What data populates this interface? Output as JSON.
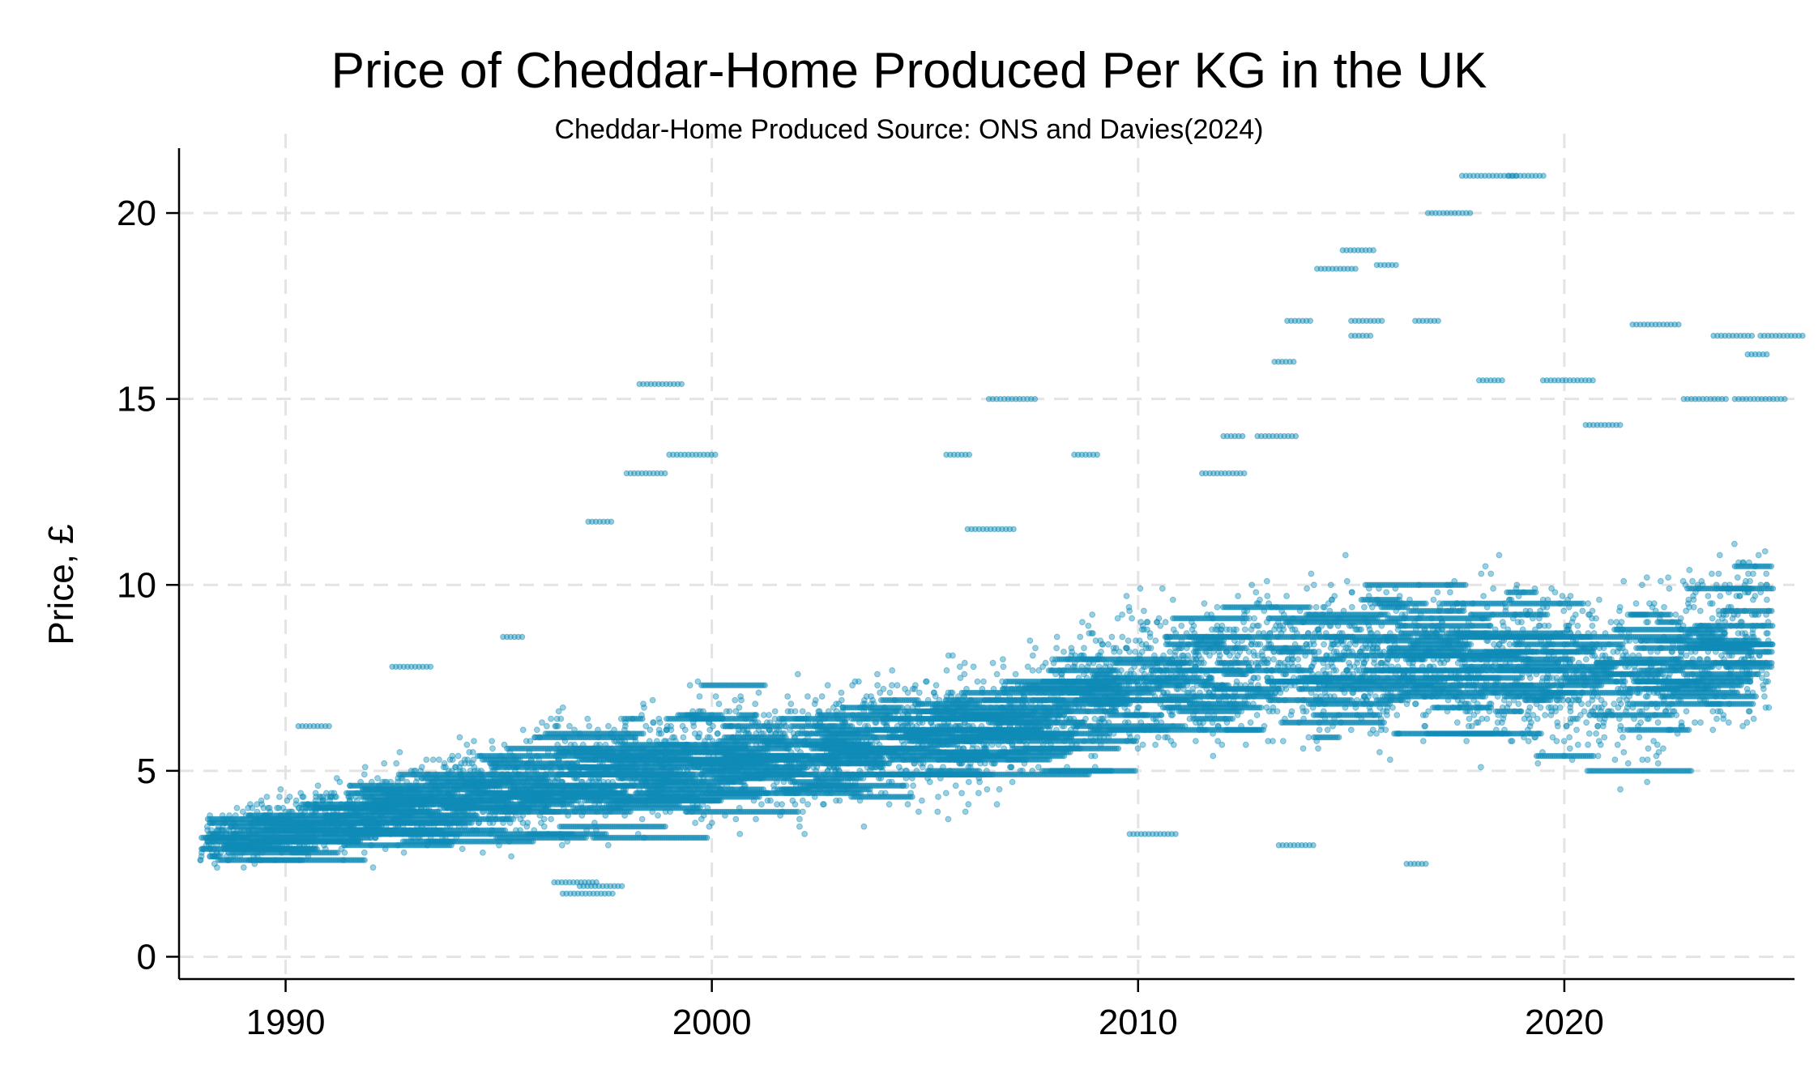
{
  "chart_data": {
    "type": "scatter",
    "title": "Price of Cheddar-Home Produced Per KG in the UK",
    "subtitle": "Cheddar-Home Produced Source: ONS and Davies(2024)",
    "xlabel": "",
    "ylabel": "Price, £",
    "xlim": [
      1987.5,
      2025.4
    ],
    "ylim": [
      -0.6,
      21.7
    ],
    "x_ticks": [
      1990,
      2000,
      2010,
      2020
    ],
    "y_ticks": [
      0,
      5,
      10,
      15,
      20
    ],
    "grid": true,
    "legend": "none",
    "series": [
      {
        "color": "#0f8cb8",
        "trend": [
          [
            1988.0,
            3.0
          ],
          [
            1989.0,
            3.3
          ],
          [
            1990.0,
            3.5
          ],
          [
            1991.0,
            3.7
          ],
          [
            1992.0,
            3.9
          ],
          [
            1993.0,
            4.1
          ],
          [
            1994.0,
            4.3
          ],
          [
            1995.0,
            4.5
          ],
          [
            1996.0,
            4.7
          ],
          [
            1997.0,
            4.9
          ],
          [
            1998.0,
            5.1
          ],
          [
            1999.0,
            5.2
          ],
          [
            2000.0,
            5.3
          ],
          [
            2001.0,
            5.4
          ],
          [
            2002.0,
            5.5
          ],
          [
            2003.0,
            5.6
          ],
          [
            2004.0,
            5.8
          ],
          [
            2005.0,
            5.9
          ],
          [
            2006.0,
            6.0
          ],
          [
            2007.0,
            6.2
          ],
          [
            2008.0,
            6.6
          ],
          [
            2009.0,
            7.2
          ],
          [
            2010.0,
            7.5
          ],
          [
            2011.0,
            7.6
          ],
          [
            2012.0,
            7.8
          ],
          [
            2013.0,
            7.9
          ],
          [
            2014.0,
            8.0
          ],
          [
            2015.0,
            8.0
          ],
          [
            2016.0,
            8.0
          ],
          [
            2017.0,
            8.0
          ],
          [
            2018.0,
            7.9
          ],
          [
            2019.0,
            7.8
          ],
          [
            2020.0,
            7.6
          ],
          [
            2021.0,
            7.5
          ],
          [
            2022.0,
            7.4
          ],
          [
            2023.0,
            8.3
          ],
          [
            2024.0,
            8.6
          ],
          [
            2025.0,
            8.6
          ]
        ],
        "spread": [
          [
            1988.0,
            0.6
          ],
          [
            1990.0,
            0.8
          ],
          [
            1995.0,
            1.2
          ],
          [
            2000.0,
            1.4
          ],
          [
            2005.0,
            1.5
          ],
          [
            2008.0,
            1.5
          ],
          [
            2010.0,
            1.6
          ],
          [
            2015.0,
            1.8
          ],
          [
            2020.0,
            1.9
          ],
          [
            2025.0,
            2.1
          ]
        ],
        "outliers": [
          [
            1998.3,
            15.4
          ],
          [
            1997.1,
            11.7
          ],
          [
            1998.0,
            13.0
          ],
          [
            1999.0,
            13.5
          ],
          [
            2005.5,
            13.5
          ],
          [
            2006.5,
            15.0
          ],
          [
            2008.5,
            13.5
          ],
          [
            2013.5,
            17.1
          ],
          [
            2014.2,
            18.5
          ],
          [
            2015.0,
            17.1
          ],
          [
            2016.5,
            17.1
          ],
          [
            2017.6,
            21.0
          ],
          [
            2018.7,
            21.0
          ],
          [
            2016.8,
            20.0
          ],
          [
            2014.8,
            19.0
          ],
          [
            2015.6,
            18.6
          ],
          [
            2018.0,
            15.5
          ],
          [
            2019.5,
            15.5
          ],
          [
            2021.6,
            17.0
          ],
          [
            2023.5,
            16.7
          ],
          [
            2024.6,
            16.7
          ],
          [
            2024.3,
            16.2
          ],
          [
            2012.0,
            14.0
          ],
          [
            2013.2,
            16.0
          ],
          [
            2015.0,
            16.7
          ],
          [
            2012.8,
            14.0
          ],
          [
            2011.5,
            13.0
          ],
          [
            2020.5,
            14.3
          ],
          [
            2022.8,
            15.0
          ],
          [
            2024.0,
            15.0
          ],
          [
            1996.3,
            2.0
          ],
          [
            1996.5,
            1.7
          ],
          [
            1996.9,
            1.9
          ],
          [
            2016.3,
            2.5
          ],
          [
            2013.3,
            3.0
          ],
          [
            2009.8,
            3.3
          ],
          [
            1992.5,
            7.8
          ],
          [
            1995.1,
            8.6
          ],
          [
            1990.3,
            6.2
          ],
          [
            2006.0,
            11.5
          ]
        ]
      }
    ]
  }
}
